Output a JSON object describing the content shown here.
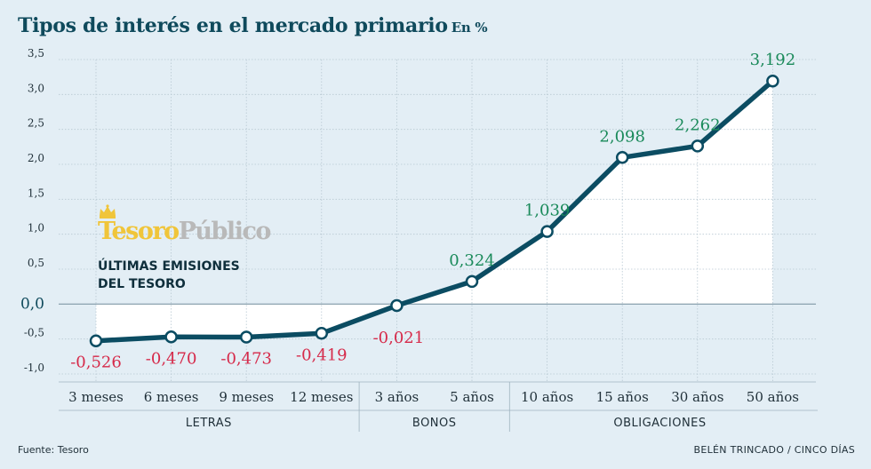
{
  "title": "Tipos de interés en el mercado primario",
  "units": "En %",
  "colors": {
    "line": "#0b4c62",
    "positive_label": "#1a8a5a",
    "negative_label": "#d62a4a",
    "plot_bg": "#ffffff",
    "page_bg": "#e3eef5",
    "gridline": "#b8c8d2"
  },
  "logo": {
    "brand_part1": "Tesoro",
    "brand_part2": "Público",
    "subtitle_line1": "ÚLTIMAS EMISIONES",
    "subtitle_line2": "DEL TESORO",
    "icon": "crown-icon"
  },
  "footer": {
    "source": "Fuente: Tesoro",
    "credit": "BELÉN TRINCADO / CINCO DÍAS"
  },
  "chart_data": {
    "type": "line",
    "title": "Tipos de interés en el mercado primario",
    "ylabel": "En %",
    "ylim": [
      -1.0,
      3.5
    ],
    "yticks": [
      "3,5",
      "3,0",
      "2,5",
      "2,0",
      "1,5",
      "1,0",
      "0,5",
      "0,0",
      "-0,5",
      "-1,0"
    ],
    "ytick_values": [
      3.5,
      3.0,
      2.5,
      2.0,
      1.5,
      1.0,
      0.5,
      0.0,
      -0.5,
      -1.0
    ],
    "categories": [
      "3 meses",
      "6 meses",
      "9 meses",
      "12 meses",
      "3 años",
      "5 años",
      "10 años",
      "15 años",
      "30 años",
      "50 años"
    ],
    "values": [
      -0.526,
      -0.47,
      -0.473,
      -0.419,
      -0.021,
      0.324,
      1.039,
      2.098,
      2.262,
      3.192
    ],
    "data_labels": [
      "-0,526",
      "-0,470",
      "-0,473",
      "-0,419",
      "-0,021",
      "0,324",
      "1,039",
      "2,098",
      "2,262",
      "3,192"
    ],
    "groups": [
      {
        "name": "LETRAS",
        "start": 0,
        "end": 3
      },
      {
        "name": "BONOS",
        "start": 4,
        "end": 5
      },
      {
        "name": "OBLIGACIONES",
        "start": 6,
        "end": 9
      }
    ]
  }
}
